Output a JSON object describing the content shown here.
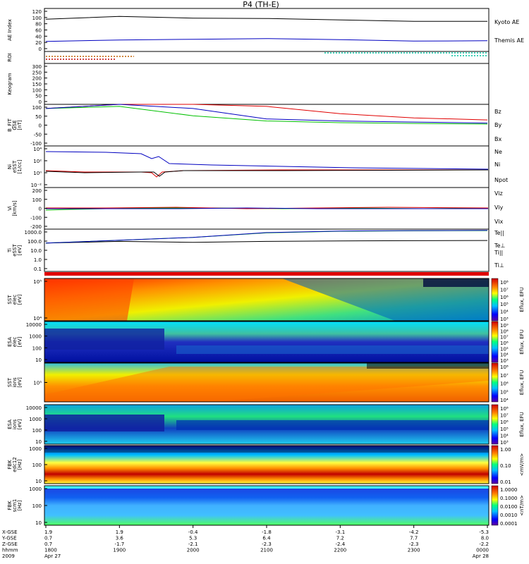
{
  "title": "P4 (TH-E)",
  "colors": {
    "red": "#e00000",
    "green": "#00c000",
    "blue": "#0000c0",
    "black": "#000000"
  },
  "panels": {
    "ae": {
      "ylabel": "AE Index",
      "ticks": [
        "120",
        "100",
        "80",
        "60",
        "40",
        "20",
        "0"
      ],
      "legend": [
        {
          "text": "Kyoto AE",
          "color": "#0000c0"
        },
        {
          "text": "Themis AE",
          "color": "#000000"
        }
      ]
    },
    "roi": {
      "ylabel": "ROI"
    },
    "keogram": {
      "ylabel": "Keogram",
      "ticks": [
        "300",
        "250",
        "200",
        "150",
        "100",
        "50",
        "0"
      ]
    },
    "bfit": {
      "ylabel": [
        "B_FIT",
        "GSE",
        "[nT]"
      ],
      "ticks": [
        "100",
        "50",
        "0",
        "-50",
        "-100"
      ],
      "legend": [
        {
          "text": "Bz",
          "color": "#e00000"
        },
        {
          "text": "By",
          "color": "#00c000"
        },
        {
          "text": "Bx",
          "color": "#0000c0"
        }
      ]
    },
    "ni": {
      "ylabel": [
        "Ni",
        "eSST",
        "[1/cc]"
      ],
      "ticks": [
        "10⁴",
        "10²",
        "10⁰",
        "10⁻²"
      ],
      "legend": [
        {
          "text": "Ne",
          "color": "#e00000"
        },
        {
          "text": "Ni",
          "color": "#000000"
        },
        {
          "text": "Npot",
          "color": "#0000c0"
        }
      ]
    },
    "vi": {
      "ylabel": [
        "Vi",
        "[km/s]"
      ],
      "ticks": [
        "200",
        "100",
        "0",
        "-100",
        "-200"
      ],
      "legend": [
        {
          "text": "Viz",
          "color": "#e00000"
        },
        {
          "text": "Viy",
          "color": "#00c000"
        },
        {
          "text": "Vix",
          "color": "#0000c0"
        }
      ]
    },
    "ti": {
      "ylabel": [
        "Ti",
        "eSST",
        "[eV]"
      ],
      "ticks": [
        "1000.0",
        "100.0",
        "10.0",
        "1.0",
        "0.1"
      ],
      "legend": [
        {
          "text": "Te||",
          "color": "#000000"
        },
        {
          "text": "Te⊥",
          "color": "#e00000"
        },
        {
          "text": "Ti||",
          "color": "#00c000"
        },
        {
          "text": "Ti⊥",
          "color": "#0000c0"
        }
      ]
    },
    "sst_e": {
      "ylabel": [
        "SST",
        "elec",
        "[eV]"
      ],
      "ticks": [
        "10⁵",
        "10⁴"
      ],
      "cbar_label": "Eflux, EFU",
      "cbar_ticks": [
        "10⁸",
        "10⁷",
        "10⁶",
        "10⁵",
        "10⁴",
        "10³"
      ]
    },
    "esa_e": {
      "ylabel": [
        "ESA",
        "elec",
        "[eV]"
      ],
      "ticks": [
        "10000",
        "1000",
        "100",
        "10"
      ],
      "cbar_label": "Eflux, EFU",
      "cbar_ticks": [
        "10⁹",
        "10⁸",
        "10⁷",
        "10⁶",
        "10⁵",
        "10⁴",
        "10³"
      ]
    },
    "sst_i": {
      "ylabel": [
        "SST",
        "ions",
        "[eV]"
      ],
      "ticks": [
        "10⁵"
      ],
      "cbar_label": "Eflux, EFU",
      "cbar_ticks": [
        "10⁸",
        "10⁷",
        "10⁶",
        "10⁵",
        "10⁴"
      ]
    },
    "esa_i": {
      "ylabel": [
        "ESA",
        "ions",
        "[eV]"
      ],
      "ticks": [
        "10000",
        "1000",
        "100",
        "10"
      ],
      "cbar_label": "Eflux, EFU",
      "cbar_ticks": [
        "10⁸",
        "10⁷",
        "10⁶",
        "10⁵",
        "10⁴",
        "10³"
      ]
    },
    "fbk1": {
      "ylabel": [
        "FBK",
        "edc12",
        "[Hz]"
      ],
      "ticks": [
        "1000",
        "100",
        "10"
      ],
      "cbar_label": "<mV/m>",
      "cbar_ticks": [
        "1.00",
        "0.10",
        "0.01"
      ]
    },
    "fbk2": {
      "ylabel": [
        "FBK",
        "scm1",
        "[Hz]"
      ],
      "ticks": [
        "1000",
        "100",
        "10"
      ],
      "cbar_label": "<nT/m>",
      "cbar_ticks": [
        "1.0000",
        "0.1000",
        "0.0100",
        "0.0010",
        "0.0001"
      ]
    }
  },
  "xaxis": {
    "row_labels": [
      "X-GSE",
      "Y-GSE",
      "Z-GSE",
      "hhmm",
      "2009"
    ],
    "columns": [
      {
        "x": "1.9",
        "y": "0.7",
        "z": "0.7",
        "t": "1800",
        "d": "Apr 27"
      },
      {
        "x": "1.9",
        "y": "3.6",
        "z": "-1.7",
        "t": "1900",
        "d": ""
      },
      {
        "x": "-0.4",
        "y": "5.3",
        "z": "-2.1",
        "t": "2000",
        "d": ""
      },
      {
        "x": "-1.8",
        "y": "6.4",
        "z": "-2.3",
        "t": "2100",
        "d": ""
      },
      {
        "x": "-3.1",
        "y": "7.2",
        "z": "-2.4",
        "t": "2200",
        "d": ""
      },
      {
        "x": "-4.2",
        "y": "7.7",
        "z": "-2.3",
        "t": "2300",
        "d": ""
      },
      {
        "x": "-5.3",
        "y": "8.0",
        "z": "-2.2",
        "t": "0000",
        "d": "Apr 28"
      }
    ]
  },
  "chart_data": [
    {
      "type": "line",
      "panel": "ae",
      "title": "AE Index",
      "ylim": [
        0,
        120
      ],
      "x": [
        "1800",
        "1900",
        "2000",
        "2100",
        "2200",
        "2300",
        "0000"
      ],
      "series": [
        {
          "name": "Kyoto AE",
          "values": [
            90,
            98,
            93,
            92,
            88,
            84,
            84
          ]
        },
        {
          "name": "Themis AE",
          "values": [
            28,
            32,
            34,
            36,
            33,
            29,
            30
          ]
        }
      ]
    },
    {
      "type": "line",
      "panel": "bfit",
      "ylim": [
        -100,
        100
      ],
      "x": [
        "1800",
        "1900",
        "2000",
        "2100",
        "2200",
        "2300",
        "0000"
      ],
      "series": [
        {
          "name": "Bz",
          "values": [
            80,
            100,
            100,
            90,
            55,
            35,
            25
          ]
        },
        {
          "name": "By",
          "values": [
            80,
            90,
            45,
            20,
            12,
            8,
            5
          ]
        },
        {
          "name": "Bx",
          "values": [
            80,
            100,
            80,
            30,
            20,
            15,
            10
          ]
        }
      ]
    },
    {
      "type": "line",
      "panel": "ti",
      "ylim": [
        0.1,
        3000
      ],
      "yscale": "log",
      "x": [
        "1800",
        "1900",
        "2000",
        "2100",
        "2200",
        "2300",
        "0000"
      ],
      "series": [
        {
          "name": "Te||",
          "values": [
            100,
            150,
            120,
            150,
            170,
            180,
            190
          ]
        },
        {
          "name": "Ti||",
          "values": [
            100,
            200,
            400,
            1200,
            1800,
            2000,
            2100
          ]
        },
        {
          "name": "Ti⊥",
          "values": [
            100,
            200,
            400,
            1300,
            1900,
            2100,
            2200
          ]
        }
      ]
    }
  ]
}
